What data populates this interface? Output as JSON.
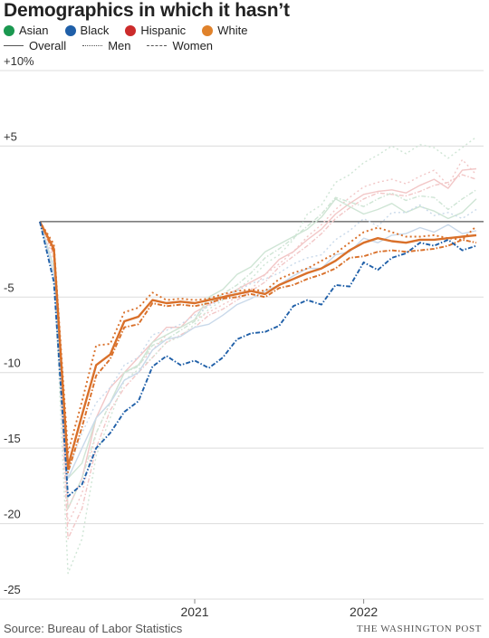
{
  "title": "Demographics in which it hasn’t",
  "legend": {
    "groups": [
      {
        "label": "Asian",
        "color": "#1a9850"
      },
      {
        "label": "Black",
        "color": "#1f5fa8"
      },
      {
        "label": "Hispanic",
        "color": "#cc2b2b"
      },
      {
        "label": "White",
        "color": "#e0822b"
      }
    ],
    "styles": [
      {
        "label": "Overall",
        "dash": "solid"
      },
      {
        "label": "Men",
        "dash": "dotted"
      },
      {
        "label": "Women",
        "dash": "dashdot"
      }
    ]
  },
  "source": "Source: Bureau of Labor Statistics",
  "credit": "THE WASHINGTON POST",
  "chart_data": {
    "type": "line",
    "ylim": [
      -25,
      10
    ],
    "xlim": [
      0,
      31
    ],
    "yticks": [
      {
        "value": 10,
        "label": "+10%"
      },
      {
        "value": 5,
        "label": "+5"
      },
      {
        "value": -5,
        "label": "-5"
      },
      {
        "value": -10,
        "label": "-10"
      },
      {
        "value": -15,
        "label": "-15"
      },
      {
        "value": -20,
        "label": "-20"
      },
      {
        "value": -25,
        "label": "-25"
      }
    ],
    "xticks": [
      {
        "value": 11,
        "label": "2021"
      },
      {
        "value": 23,
        "label": "2022"
      }
    ],
    "baseline": 0,
    "highlighted_series": [
      {
        "group": "White",
        "style": "Overall",
        "color": "#d9702a",
        "dash": "solid",
        "values": [
          0,
          -1.8,
          -16.2,
          -12.8,
          -9.5,
          -8.8,
          -6.6,
          -6.3,
          -5.2,
          -5.4,
          -5.3,
          -5.4,
          -5.2,
          -5.0,
          -4.8,
          -4.6,
          -4.8,
          -4.2,
          -3.8,
          -3.4,
          -3.1,
          -2.6,
          -1.9,
          -1.4,
          -1.1,
          -1.3,
          -1.4,
          -1.2,
          -1.2,
          -1.1,
          -1.0,
          -0.9
        ]
      },
      {
        "group": "White",
        "style": "Men",
        "color": "#d9702a",
        "dash": "dotted",
        "values": [
          0,
          -1.5,
          -15.3,
          -11.9,
          -8.2,
          -8.1,
          -6.0,
          -5.7,
          -4.7,
          -5.2,
          -5.1,
          -5.2,
          -5.1,
          -4.8,
          -4.6,
          -4.5,
          -4.6,
          -3.8,
          -3.4,
          -3.1,
          -2.6,
          -2.1,
          -1.4,
          -0.7,
          -0.4,
          -0.7,
          -1.0,
          -1.0,
          -0.9,
          -1.1,
          -1.2,
          -0.3
        ]
      },
      {
        "group": "White",
        "style": "Women",
        "color": "#d9702a",
        "dash": "dashdot",
        "values": [
          0,
          -2.0,
          -16.6,
          -13.6,
          -10.2,
          -9.1,
          -7.0,
          -6.8,
          -5.4,
          -5.6,
          -5.5,
          -5.6,
          -5.4,
          -5.1,
          -5.0,
          -4.8,
          -5.0,
          -4.4,
          -4.2,
          -3.8,
          -3.5,
          -3.1,
          -2.4,
          -2.3,
          -2.0,
          -1.9,
          -2.0,
          -1.9,
          -1.8,
          -1.6,
          -1.2,
          -1.4
        ]
      },
      {
        "group": "Black",
        "style": "Women",
        "color": "#1f5fa8",
        "dash": "dashdot",
        "values": [
          0,
          -4.0,
          -18.2,
          -17.4,
          -15.0,
          -14.0,
          -12.6,
          -11.9,
          -9.6,
          -8.9,
          -9.5,
          -9.2,
          -9.7,
          -9.0,
          -7.8,
          -7.4,
          -7.3,
          -6.9,
          -5.6,
          -5.2,
          -5.5,
          -4.2,
          -4.3,
          -2.7,
          -3.2,
          -2.4,
          -2.1,
          -1.4,
          -1.6,
          -1.2,
          -1.9,
          -1.6
        ]
      }
    ],
    "background_series": [
      {
        "color": "#f2c7c7",
        "dash": "solid",
        "values": [
          0,
          -2,
          -19,
          -17,
          -13,
          -11,
          -10,
          -9,
          -8,
          -7,
          -7,
          -6,
          -5.5,
          -5,
          -4.5,
          -4,
          -3.5,
          -2.5,
          -2,
          -1.2,
          -0.5,
          0.5,
          1.2,
          1.8,
          2.0,
          2.1,
          1.9,
          2.4,
          2.8,
          2.2,
          3.4,
          3.5
        ]
      },
      {
        "color": "#f2c7c7",
        "dash": "dotted",
        "values": [
          0,
          -2.5,
          -20,
          -18,
          -14,
          -12,
          -10,
          -9.5,
          -8.5,
          -7.5,
          -7,
          -6.5,
          -6,
          -5.5,
          -5,
          -4.5,
          -3.5,
          -2.8,
          -2,
          -1,
          -0.2,
          0.8,
          1.6,
          2.3,
          2.6,
          2.8,
          2.5,
          3.0,
          3.4,
          2.4,
          4.1,
          3.1
        ]
      },
      {
        "color": "#f2c7c7",
        "dash": "dashdot",
        "values": [
          0,
          -2.2,
          -21,
          -19,
          -15,
          -12.5,
          -11,
          -10,
          -9,
          -8,
          -7.5,
          -7,
          -6.2,
          -5.8,
          -5.2,
          -4.6,
          -4,
          -3,
          -2.3,
          -1.6,
          -0.8,
          0.2,
          0.9,
          1.5,
          1.9,
          1.8,
          1.7,
          2.0,
          2.4,
          2.6,
          3.1,
          2.8
        ]
      },
      {
        "color": "#cfe5d5",
        "dash": "solid",
        "values": [
          0,
          -3,
          -17,
          -16,
          -13,
          -12,
          -10,
          -9.5,
          -8,
          -7.5,
          -7,
          -6.5,
          -5,
          -4.5,
          -3.5,
          -3,
          -2,
          -1.5,
          -1,
          -0.5,
          0.3,
          1.5,
          1.0,
          0.5,
          0.8,
          1.2,
          0.6,
          1.0,
          0.7,
          0.2,
          0.6,
          1.5
        ]
      },
      {
        "color": "#cfe5d5",
        "dash": "dotted",
        "values": [
          0,
          -3,
          -23.3,
          -21,
          -15.5,
          -13,
          -10.5,
          -9.8,
          -9,
          -8,
          -7.6,
          -6.8,
          -5.8,
          -5.2,
          -4.5,
          -3.8,
          -2.8,
          -2.2,
          -1.2,
          0.5,
          1.1,
          2.6,
          3.1,
          3.9,
          4.4,
          5.0,
          4.5,
          5.1,
          4.9,
          4.2,
          4.9,
          5.6
        ]
      },
      {
        "color": "#cfe5d5",
        "dash": "dashdot",
        "values": [
          0,
          -3.5,
          -19,
          -17,
          -14,
          -12,
          -10,
          -9.6,
          -8.2,
          -7.8,
          -7.2,
          -6.6,
          -5.4,
          -4.8,
          -4.2,
          -3.4,
          -2.4,
          -1.8,
          -1.1,
          -0.3,
          0.5,
          1.6,
          1.3,
          1.0,
          1.5,
          1.9,
          1.4,
          1.7,
          1.6,
          0.8,
          1.5,
          2.1
        ]
      },
      {
        "color": "#c9d9ea",
        "dash": "solid",
        "values": [
          0,
          -3.5,
          -17,
          -15,
          -13,
          -12,
          -10.5,
          -10,
          -8.5,
          -7.8,
          -7.6,
          -7,
          -6.8,
          -6.2,
          -5.5,
          -5.1,
          -4.6,
          -4.2,
          -3.6,
          -3.1,
          -3.1,
          -2.2,
          -2.0,
          -1.1,
          -1.4,
          -0.9,
          -0.8,
          -0.4,
          -0.7,
          -0.2,
          -0.8,
          -0.6
        ]
      },
      {
        "color": "#c9d9ea",
        "dash": "dotted",
        "values": [
          0,
          -3,
          -16.5,
          -14,
          -12,
          -11,
          -9.5,
          -9,
          -7.5,
          -7.2,
          -6.8,
          -6.2,
          -5.6,
          -5.1,
          -4.6,
          -4.1,
          -3.8,
          -3.4,
          -2.8,
          -2.4,
          -2.2,
          -1.2,
          -0.6,
          0.2,
          -0.3,
          0.6,
          0.6,
          1.1,
          0.4,
          0.6,
          0.2,
          0.8
        ]
      }
    ]
  }
}
